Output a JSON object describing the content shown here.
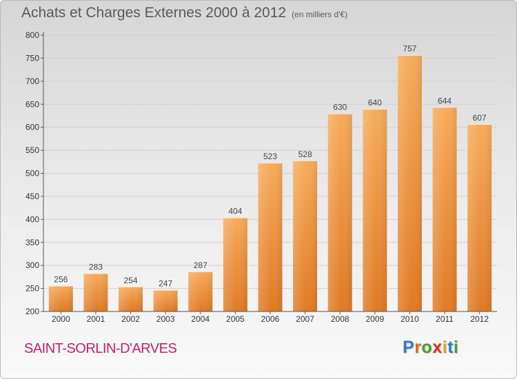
{
  "title": "Achats et Charges Externes 2000 à 2012",
  "unit": "(en milliers d'€)",
  "place": "SAINT-SORLIN-D'ARVES",
  "logo": {
    "letters": [
      "P",
      "r",
      "o",
      "x",
      "i",
      "t",
      "i"
    ],
    "colors": [
      "#2b7fc8",
      "#e8641b",
      "#3aa335",
      "#d9302a",
      "#e8a31b",
      "#2b7fc8",
      "#3aa335"
    ]
  },
  "colors": {
    "bar_top": "#f6ab5a",
    "bar_bottom": "#e07a25",
    "grid": "#cfcfcf",
    "axis": "#555555",
    "place": "#c0206d"
  },
  "chart_data": {
    "type": "bar",
    "title": "Achats et Charges Externes 2000 à 2012",
    "subtitle": "(en milliers d'€)",
    "categories": [
      "2000",
      "2001",
      "2002",
      "2003",
      "2004",
      "2005",
      "2006",
      "2007",
      "2008",
      "2009",
      "2010",
      "2011",
      "2012"
    ],
    "values": [
      256,
      283,
      254,
      247,
      287,
      404,
      523,
      528,
      630,
      640,
      757,
      644,
      607
    ],
    "yticks": [
      200,
      250,
      300,
      350,
      400,
      450,
      500,
      550,
      600,
      650,
      700,
      750,
      800
    ],
    "ylim": [
      200,
      800
    ],
    "xlabel": "",
    "ylabel": "",
    "grid": true
  }
}
